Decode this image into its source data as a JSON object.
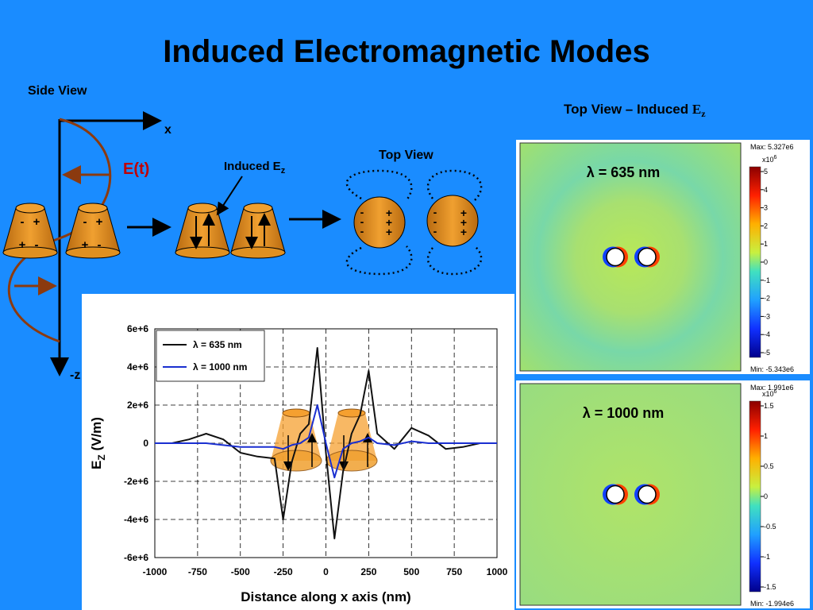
{
  "title": "Induced Electromagnetic Modes",
  "side_view": {
    "label": "Side View",
    "x_axis": "x",
    "z_axis": "-z",
    "field": "E(t)",
    "cone_signs": [
      "-",
      "+",
      "+",
      "-",
      "-",
      "+",
      "+",
      "-"
    ],
    "induced_label": "Induced E",
    "induced_sub": "z"
  },
  "top_view_sketch": {
    "label": "Top View",
    "left_signs": [
      "-",
      "-",
      "-",
      "+",
      "+",
      "+"
    ],
    "right_signs": [
      "-",
      "-",
      "-",
      "+",
      "+",
      "+"
    ]
  },
  "top_view_maps": {
    "heading": "Top View – Induced ",
    "heading_sym": "E",
    "heading_sub": "z",
    "panels": [
      {
        "label": "λ = 635 nm",
        "max": "Max: 5.327e6",
        "min": "Min: -5.343e6",
        "scale": "x10",
        "scale_exp": "6",
        "colorbar": [
          "5",
          "4",
          "3",
          "2",
          "1",
          "0",
          "-1",
          "-2",
          "-3",
          "-4",
          "-5"
        ]
      },
      {
        "label": "λ = 1000 nm",
        "max": "Max: 1.991e6",
        "min": "Min: -1.994e6",
        "scale": "x10",
        "scale_exp": "6",
        "colorbar": [
          "1.5",
          "1",
          "0.5",
          "0",
          "-0.5",
          "-1",
          "-1.5"
        ]
      }
    ]
  },
  "chart_data": {
    "type": "line",
    "x_label": "Distance along x axis (nm)",
    "y_label": "E",
    "y_label_sub": "Z",
    "y_label_unit": "  (V/m)",
    "x": [
      -1000,
      -900,
      -800,
      -700,
      -600,
      -500,
      -400,
      -300,
      -250,
      -200,
      -150,
      -100,
      -50,
      0,
      50,
      100,
      150,
      200,
      250,
      300,
      400,
      500,
      600,
      700,
      800,
      900,
      1000
    ],
    "series": [
      {
        "name": "λ = 635 nm",
        "color": "#111111",
        "values": [
          0,
          0,
          200000,
          500000,
          200000,
          -500000,
          -700000,
          -800000,
          -4000000,
          -1000000,
          500000,
          1000000,
          5000000,
          -500000,
          -5000000,
          -1500000,
          500000,
          1500000,
          3800000,
          500000,
          -300000,
          800000,
          400000,
          -300000,
          -200000,
          0,
          0
        ]
      },
      {
        "name": "λ = 1000 nm",
        "color": "#1a2fd0",
        "values": [
          0,
          0,
          0,
          0,
          -100000,
          -200000,
          -200000,
          -200000,
          -300000,
          -100000,
          0,
          300000,
          2000000,
          0,
          -1800000,
          -300000,
          0,
          100000,
          300000,
          0,
          -100000,
          100000,
          0,
          0,
          0,
          0,
          0
        ]
      }
    ],
    "xlim": [
      -1000,
      1000
    ],
    "xticks": [
      -1000,
      -750,
      -500,
      -250,
      0,
      250,
      500,
      750,
      1000
    ],
    "ylim": [
      -6000000,
      6000000
    ],
    "yticks": [
      {
        "value": -6000000,
        "label": "-6e+6"
      },
      {
        "value": -4000000,
        "label": "-4e+6"
      },
      {
        "value": -2000000,
        "label": "-2e+6"
      },
      {
        "value": 0,
        "label": "0"
      },
      {
        "value": 2000000,
        "label": "2e+6"
      },
      {
        "value": 4000000,
        "label": "4e+6"
      },
      {
        "value": 6000000,
        "label": "6e+6"
      }
    ],
    "grid": true,
    "legend": "upper-left"
  }
}
